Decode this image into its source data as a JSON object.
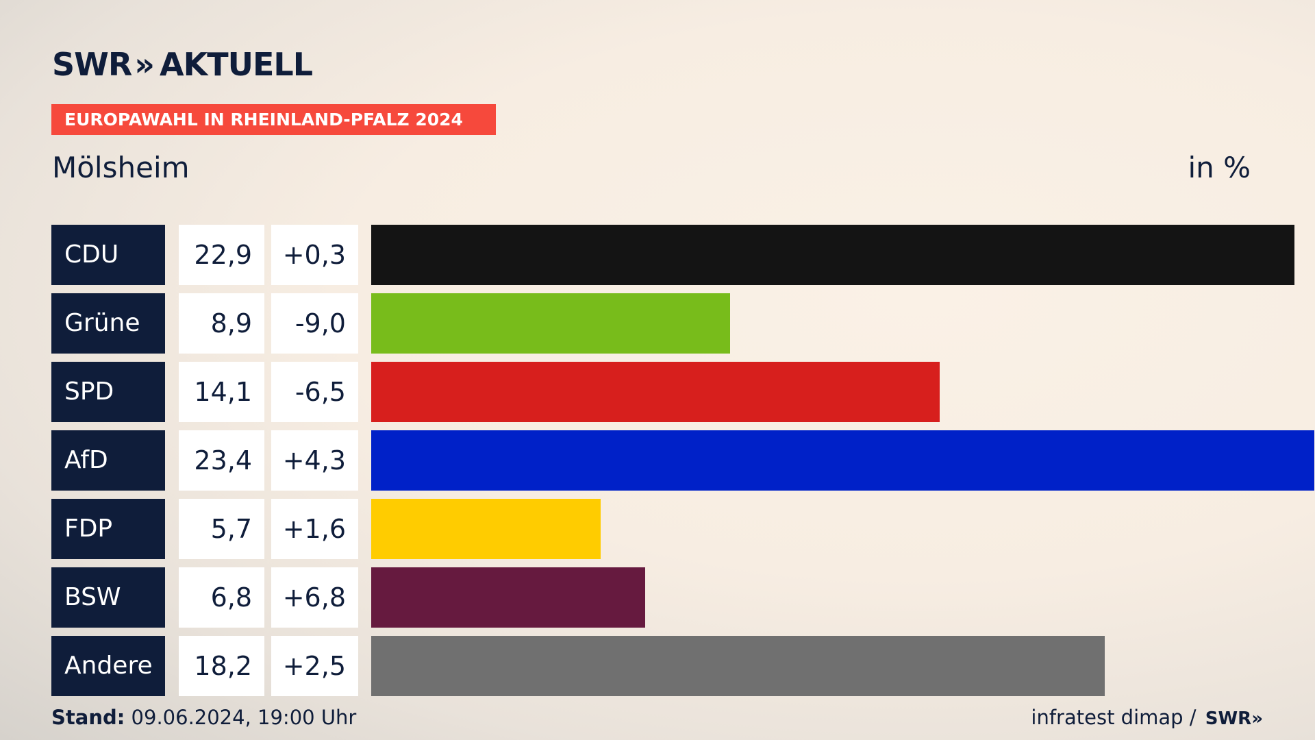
{
  "header": {
    "logo_text": "SWR",
    "logo_chevrons": "»",
    "logo_suffix": "AKTUELL",
    "banner": "EUROPAWAHL IN RHEINLAND-PFALZ 2024",
    "place": "Mölsheim",
    "unit": "in %"
  },
  "colors": {
    "text": "#0f1d3a",
    "banner": "#f6493c",
    "label_bg": "#0f1d3a"
  },
  "chart_data": {
    "type": "bar",
    "orientation": "horizontal",
    "categories": [
      "CDU",
      "Grüne",
      "SPD",
      "AfD",
      "FDP",
      "BSW",
      "Andere"
    ],
    "values": [
      22.9,
      8.9,
      14.1,
      23.4,
      5.7,
      6.8,
      18.2
    ],
    "value_labels": [
      "22,9",
      "8,9",
      "14,1",
      "23,4",
      "5,7",
      "6,8",
      "18,2"
    ],
    "changes": [
      "+0,3",
      "-9,0",
      "-6,5",
      "+4,3",
      "+1,6",
      "+6,8",
      "+2,5"
    ],
    "bar_colors": [
      "#141414",
      "#78bc1b",
      "#d71f1d",
      "#0021c8",
      "#ffcc00",
      "#661a3f",
      "#707070"
    ],
    "xlim": [
      0,
      23.4
    ],
    "grid": false
  },
  "footer": {
    "stand_label": "Stand:",
    "stand_value": " 09.06.2024, 19:00 Uhr",
    "source": "infratest dimap / ",
    "source_logo": "SWR»"
  }
}
